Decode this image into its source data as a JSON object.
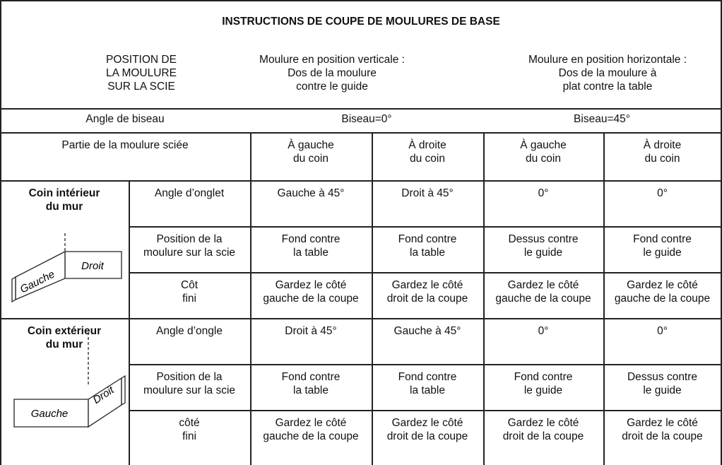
{
  "title": "INSTRUCTIONS DE COUPE DE MOULURES DE BASE",
  "header": {
    "position_label": "POSITION DE\nLA MOULURE\nSUR LA SCIE",
    "vertical": "Moulure en position verticale :\nDos de la moulure\ncontre le guide",
    "horizontal": "Moulure en position horizontale :\nDos de la moulure à\nplat contre la table"
  },
  "bevel": {
    "label": "Angle de biseau",
    "vertical": "Biseau=0°",
    "horizontal": "Biseau=45°"
  },
  "part": {
    "label": "Partie de la moulure sciée",
    "columns": [
      "À gauche\ndu coin",
      "À droite\ndu coin",
      "À gauche\ndu coin",
      "À droite\ndu coin"
    ]
  },
  "sections": [
    {
      "title": "Coin intérieur\ndu mur",
      "diagram": {
        "left": "Gauche",
        "right": "Droit"
      },
      "rows": [
        {
          "label": "Angle d’onglet",
          "cells": [
            "Gauche à 45°",
            "Droit à 45°",
            "0°",
            "0°"
          ]
        },
        {
          "label": "Position de la\nmoulure sur la scie",
          "cells": [
            "Fond contre\nla table",
            "Fond contre\nla table",
            "Dessus contre\nle guide",
            "Fond contre\nle guide"
          ]
        },
        {
          "label": "Côt\nfini",
          "cells": [
            "Gardez le côté\ngauche de la coupe",
            "Gardez le côté\ndroit de la coupe",
            "Gardez le côté\ngauche de la coupe",
            "Gardez le côté\ngauche de la coupe"
          ]
        }
      ]
    },
    {
      "title": "Coin extérieur\ndu mur",
      "diagram": {
        "left": "Gauche",
        "right": "Droit"
      },
      "rows": [
        {
          "label": "Angle d’ongle",
          "cells": [
            "Droit à 45°",
            "Gauche à 45°",
            "0°",
            "0°"
          ]
        },
        {
          "label": "Position de la\nmoulure sur la scie",
          "cells": [
            "Fond contre\nla table",
            "Fond contre\nla table",
            "Fond contre\nle guide",
            "Dessus contre\nle guide"
          ]
        },
        {
          "label": "côté\nfini",
          "cells": [
            "Gardez le côté\ngauche de la coupe",
            "Gardez le côté\ndroit de la coupe",
            "Gardez le côté\ndroit de la coupe",
            "Gardez le côté\ndroit de la coupe"
          ]
        }
      ]
    }
  ]
}
